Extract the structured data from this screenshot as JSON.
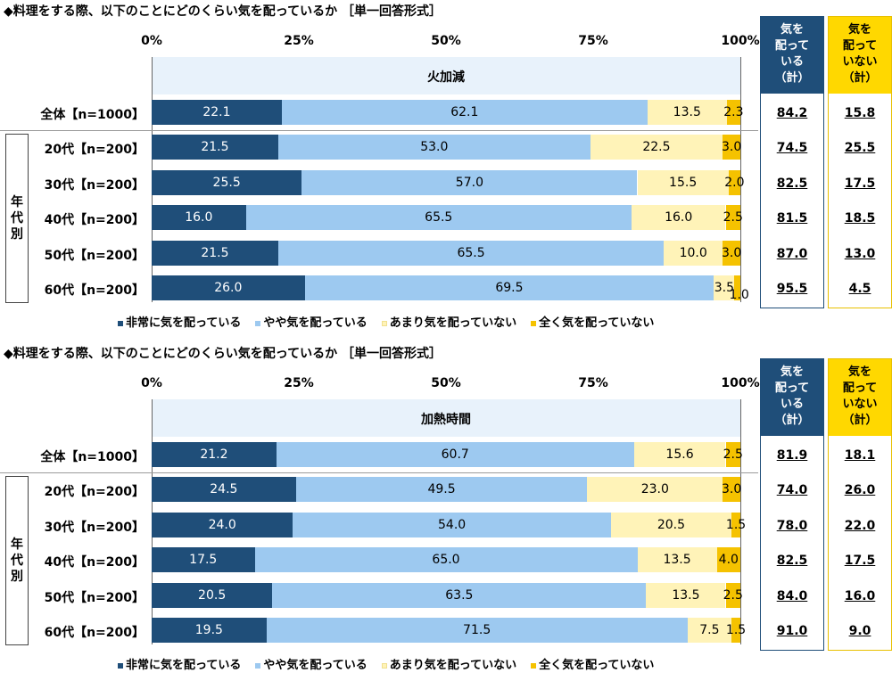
{
  "chart_data": [
    {
      "type": "bar",
      "orientation": "horizontal",
      "stacked": true,
      "title": "◆料理をする際、以下のことにどのくらい気を配っているか ［単一回答形式］",
      "item_label": "火加減",
      "axis_ticks": [
        "0%",
        "25%",
        "50%",
        "75%",
        "100%"
      ],
      "xlim": [
        0,
        100
      ],
      "group_label": [
        "年",
        "代",
        "別"
      ],
      "categories": [
        "全体【n=1000】",
        "20代【n=200】",
        "30代【n=200】",
        "40代【n=200】",
        "50代【n=200】",
        "60代【n=200】"
      ],
      "series": [
        {
          "name": "非常に気を配っている",
          "color": "#1f4e79",
          "values": [
            22.1,
            21.5,
            25.5,
            16.0,
            21.5,
            26.0
          ],
          "labels": [
            "22.1",
            "21.5",
            "25.5",
            "16.0",
            "21.5",
            "26.0"
          ]
        },
        {
          "name": "やや気を配っている",
          "color": "#9dc9f0",
          "values": [
            62.1,
            53.0,
            57.0,
            65.5,
            65.5,
            69.5
          ],
          "labels": [
            "62.1",
            "53.0",
            "57.0",
            "65.5",
            "65.5",
            "69.5"
          ]
        },
        {
          "name": "あまり気を配っていない",
          "color": "#fff3b8",
          "values": [
            13.5,
            22.5,
            15.5,
            16.0,
            10.0,
            3.5
          ],
          "labels": [
            "13.5",
            "22.5",
            "15.5",
            "16.0",
            "10.0",
            "3.5"
          ]
        },
        {
          "name": "全く気を配っていない",
          "color": "#f5c200",
          "values": [
            2.3,
            3.0,
            2.0,
            2.5,
            3.0,
            1.0
          ],
          "labels": [
            "2.3",
            "3.0",
            "2.0",
            "2.5",
            "3.0",
            "1.0"
          ]
        }
      ],
      "totals": {
        "care_header": [
          "気を",
          "配って",
          "いる",
          "（計）"
        ],
        "nocare_header": [
          "気を",
          "配って",
          "いない",
          "（計）"
        ],
        "care": [
          "84.2",
          "74.5",
          "82.5",
          "81.5",
          "87.0",
          "95.5"
        ],
        "nocare": [
          "15.8",
          "25.5",
          "17.5",
          "18.5",
          "13.0",
          "4.5"
        ]
      }
    },
    {
      "type": "bar",
      "orientation": "horizontal",
      "stacked": true,
      "title": "◆料理をする際、以下のことにどのくらい気を配っているか ［単一回答形式］",
      "item_label": "加熱時間",
      "axis_ticks": [
        "0%",
        "25%",
        "50%",
        "75%",
        "100%"
      ],
      "xlim": [
        0,
        100
      ],
      "group_label": [
        "年",
        "代",
        "別"
      ],
      "categories": [
        "全体【n=1000】",
        "20代【n=200】",
        "30代【n=200】",
        "40代【n=200】",
        "50代【n=200】",
        "60代【n=200】"
      ],
      "series": [
        {
          "name": "非常に気を配っている",
          "color": "#1f4e79",
          "values": [
            21.2,
            24.5,
            24.0,
            17.5,
            20.5,
            19.5
          ],
          "labels": [
            "21.2",
            "24.5",
            "24.0",
            "17.5",
            "20.5",
            "19.5"
          ]
        },
        {
          "name": "やや気を配っている",
          "color": "#9dc9f0",
          "values": [
            60.7,
            49.5,
            54.0,
            65.0,
            63.5,
            71.5
          ],
          "labels": [
            "60.7",
            "49.5",
            "54.0",
            "65.0",
            "63.5",
            "71.5"
          ]
        },
        {
          "name": "あまり気を配っていない",
          "color": "#fff3b8",
          "values": [
            15.6,
            23.0,
            20.5,
            13.5,
            13.5,
            7.5
          ],
          "labels": [
            "15.6",
            "23.0",
            "20.5",
            "13.5",
            "13.5",
            "7.5"
          ]
        },
        {
          "name": "全く気を配っていない",
          "color": "#f5c200",
          "values": [
            2.5,
            3.0,
            1.5,
            4.0,
            2.5,
            1.5
          ],
          "labels": [
            "2.5",
            "3.0",
            "1.5",
            "4.0",
            "2.5",
            "1.5"
          ]
        }
      ],
      "totals": {
        "care_header": [
          "気を",
          "配って",
          "いる",
          "（計）"
        ],
        "nocare_header": [
          "気を",
          "配って",
          "いない",
          "（計）"
        ],
        "care": [
          "81.9",
          "74.0",
          "78.0",
          "82.5",
          "84.0",
          "91.0"
        ],
        "nocare": [
          "18.1",
          "26.0",
          "22.0",
          "17.5",
          "16.0",
          "9.0"
        ]
      }
    }
  ]
}
